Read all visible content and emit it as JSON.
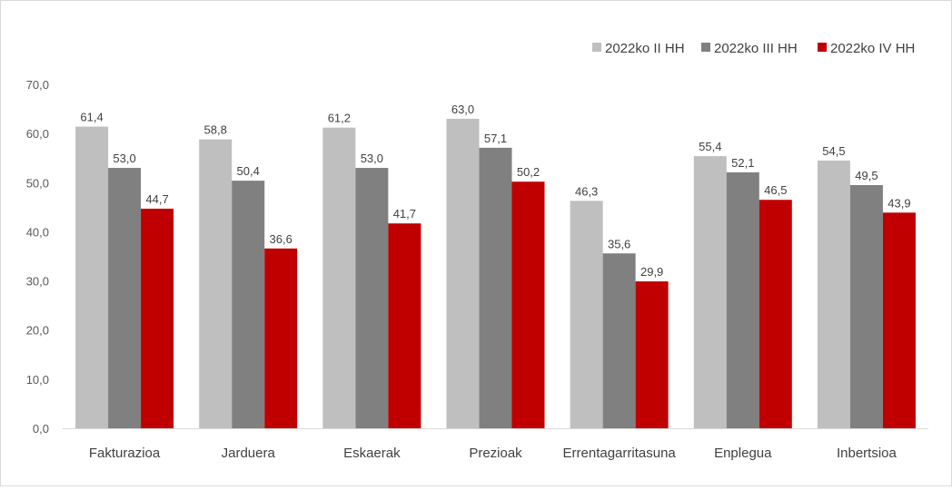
{
  "chart_data": {
    "type": "bar",
    "categories": [
      "Fakturazioa",
      "Jarduera",
      "Eskaerak",
      "Prezioak",
      "Errentagarritasuna",
      "Enplegua",
      "Inbertsioa"
    ],
    "series": [
      {
        "name": "2022ko II HH",
        "color": "#bfbfbf",
        "values": [
          61.4,
          58.8,
          61.2,
          63.0,
          46.3,
          55.4,
          54.5
        ]
      },
      {
        "name": "2022ko III HH",
        "color": "#808080",
        "values": [
          53.0,
          50.4,
          53.0,
          57.1,
          35.6,
          52.1,
          49.5
        ]
      },
      {
        "name": "2022ko IV HH",
        "color": "#c00000",
        "values": [
          44.7,
          36.6,
          41.7,
          50.2,
          29.9,
          46.5,
          43.9
        ]
      }
    ],
    "ylim": [
      0,
      70
    ],
    "yticks": [
      0,
      10,
      20,
      30,
      40,
      50,
      60,
      70
    ],
    "tick_format": "one decimal, comma separator",
    "grid": false,
    "legend_position": "top-right",
    "data_labels": true
  }
}
